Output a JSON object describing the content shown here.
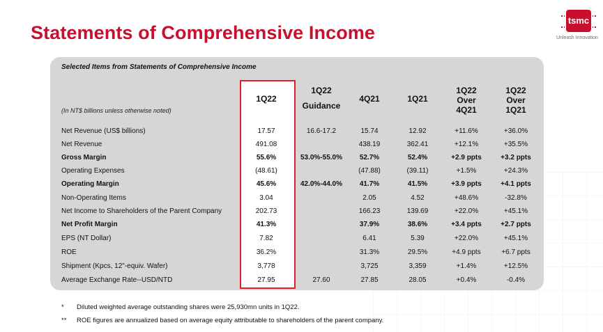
{
  "title": "Statements of Comprehensive Income",
  "logo": {
    "text": "tsmc",
    "tagline": "Unleash Innovation"
  },
  "table": {
    "heading": "Selected Items from Statements of Comprehensive Income",
    "note": "(In NT$ billions unless otherwise noted)",
    "columns": [
      {
        "lines": [
          "1Q22"
        ]
      },
      {
        "lines": [
          "1Q22",
          "Guidance"
        ]
      },
      {
        "lines": [
          "4Q21"
        ]
      },
      {
        "lines": [
          "1Q21"
        ]
      },
      {
        "lines": [
          "1Q22",
          "Over",
          "4Q21"
        ]
      },
      {
        "lines": [
          "1Q22",
          "Over",
          "1Q21"
        ]
      }
    ],
    "rows": [
      {
        "label": "Net Revenue (US$ billions)",
        "bold": false,
        "values": [
          "17.57",
          "16.6-17.2",
          "15.74",
          "12.92",
          "+11.6%",
          "+36.0%"
        ]
      },
      {
        "label": "Net Revenue",
        "bold": false,
        "values": [
          "491.08",
          "",
          "438.19",
          "362.41",
          "+12.1%",
          "+35.5%"
        ]
      },
      {
        "label": "Gross Margin",
        "bold": true,
        "values": [
          "55.6%",
          "53.0%-55.0%",
          "52.7%",
          "52.4%",
          "+2.9 ppts",
          "+3.2 ppts"
        ]
      },
      {
        "label": "Operating Expenses",
        "bold": false,
        "values": [
          "(48.61)",
          "",
          "(47.88)",
          "(39.11)",
          "+1.5%",
          "+24.3%"
        ]
      },
      {
        "label": "Operating Margin",
        "bold": true,
        "values": [
          "45.6%",
          "42.0%-44.0%",
          "41.7%",
          "41.5%",
          "+3.9 ppts",
          "+4.1 ppts"
        ]
      },
      {
        "label": "Non-Operating Items",
        "bold": false,
        "values": [
          "3.04",
          "",
          "2.05",
          "4.52",
          "+48.6%",
          "-32.8%"
        ]
      },
      {
        "label": "Net Income to Shareholders of the Parent Company",
        "bold": false,
        "values": [
          "202.73",
          "",
          "166.23",
          "139.69",
          "+22.0%",
          "+45.1%"
        ]
      },
      {
        "label": "Net Profit Margin",
        "bold": true,
        "values": [
          "41.3%",
          "",
          "37.9%",
          "38.6%",
          "+3.4 ppts",
          "+2.7 ppts"
        ]
      },
      {
        "label": "EPS (NT Dollar)",
        "bold": false,
        "values": [
          "7.82",
          "",
          "6.41",
          "5.39",
          "+22.0%",
          "+45.1%"
        ]
      },
      {
        "label": "ROE",
        "bold": false,
        "values": [
          "36.2%",
          "",
          "31.3%",
          "29.5%",
          "+4.9 ppts",
          "+6.7 ppts"
        ]
      },
      {
        "label": "Shipment (Kpcs, 12\"-equiv. Wafer)",
        "bold": false,
        "values": [
          "3,778",
          "",
          "3,725",
          "3,359",
          "+1.4%",
          "+12.5%"
        ]
      },
      {
        "label": "Average Exchange Rate--USD/NTD",
        "bold": false,
        "values": [
          "27.95",
          "27.60",
          "27.85",
          "28.05",
          "+0.4%",
          "-0.4%"
        ]
      }
    ]
  },
  "footnotes": [
    {
      "mark": "*",
      "text": "Diluted weighted average outstanding shares were 25,930mn units in 1Q22."
    },
    {
      "mark": "**",
      "text": "ROE figures are annualized based on average equity attributable to shareholders of the parent company."
    }
  ]
}
